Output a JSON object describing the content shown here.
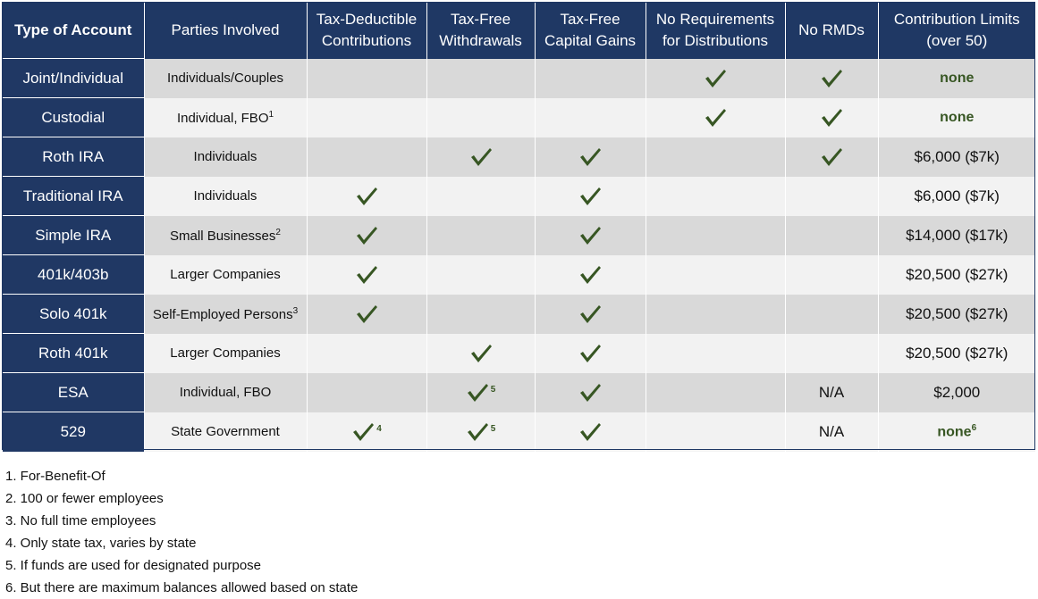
{
  "headers": [
    "Type of Account",
    "Parties Involved",
    "Tax-Deductible\nContributions",
    "Tax-Free\nWithdrawals",
    "Tax-Free\nCapital Gains",
    "No Requirements\nfor Distributions",
    "No RMDs",
    "Contribution Limits\n(over 50)"
  ],
  "check_icon": "check-icon",
  "accent_color": "#1f3864",
  "check_color": "#375623",
  "rows": [
    {
      "account": "Joint/Individual",
      "parties": "Individuals/Couples",
      "parties_sup": "",
      "deductible": "",
      "deductible_fn": "",
      "withdrawals": "",
      "withdrawals_fn": "",
      "capgains": "",
      "noreq": "check",
      "normd": "check",
      "limit": "none",
      "limit_sup": "",
      "limit_green": true
    },
    {
      "account": "Custodial",
      "parties": "Individual, FBO",
      "parties_sup": "1",
      "deductible": "",
      "deductible_fn": "",
      "withdrawals": "",
      "withdrawals_fn": "",
      "capgains": "",
      "noreq": "check",
      "normd": "check",
      "limit": "none",
      "limit_sup": "",
      "limit_green": true
    },
    {
      "account": "Roth IRA",
      "parties": "Individuals",
      "parties_sup": "",
      "deductible": "",
      "deductible_fn": "",
      "withdrawals": "check",
      "withdrawals_fn": "",
      "capgains": "check",
      "noreq": "",
      "normd": "check",
      "limit": "$6,000 ($7k)",
      "limit_sup": "",
      "limit_green": false
    },
    {
      "account": "Traditional IRA",
      "parties": "Individuals",
      "parties_sup": "",
      "deductible": "check",
      "deductible_fn": "",
      "withdrawals": "",
      "withdrawals_fn": "",
      "capgains": "check",
      "noreq": "",
      "normd": "",
      "limit": "$6,000 ($7k)",
      "limit_sup": "",
      "limit_green": false
    },
    {
      "account": "Simple IRA",
      "parties": "Small Businesses",
      "parties_sup": "2",
      "deductible": "check",
      "deductible_fn": "",
      "withdrawals": "",
      "withdrawals_fn": "",
      "capgains": "check",
      "noreq": "",
      "normd": "",
      "limit": "$14,000 ($17k)",
      "limit_sup": "",
      "limit_green": false
    },
    {
      "account": "401k/403b",
      "parties": "Larger Companies",
      "parties_sup": "",
      "deductible": "check",
      "deductible_fn": "",
      "withdrawals": "",
      "withdrawals_fn": "",
      "capgains": "check",
      "noreq": "",
      "normd": "",
      "limit": "$20,500 ($27k)",
      "limit_sup": "",
      "limit_green": false
    },
    {
      "account": "Solo 401k",
      "parties": "Self-Employed Persons",
      "parties_sup": "3",
      "deductible": "check",
      "deductible_fn": "",
      "withdrawals": "",
      "withdrawals_fn": "",
      "capgains": "check",
      "noreq": "",
      "normd": "",
      "limit": "$20,500 ($27k)",
      "limit_sup": "",
      "limit_green": false
    },
    {
      "account": "Roth 401k",
      "parties": "Larger Companies",
      "parties_sup": "",
      "deductible": "",
      "deductible_fn": "",
      "withdrawals": "check",
      "withdrawals_fn": "",
      "capgains": "check",
      "noreq": "",
      "normd": "",
      "limit": "$20,500 ($27k)",
      "limit_sup": "",
      "limit_green": false
    },
    {
      "account": "ESA",
      "parties": "Individual, FBO",
      "parties_sup": "",
      "deductible": "",
      "deductible_fn": "",
      "withdrawals": "check",
      "withdrawals_fn": "5",
      "capgains": "check",
      "noreq": "",
      "normd": "N/A",
      "limit": "$2,000",
      "limit_sup": "",
      "limit_green": false
    },
    {
      "account": "529",
      "parties": "State Government",
      "parties_sup": "",
      "deductible": "check",
      "deductible_fn": "4",
      "withdrawals": "check",
      "withdrawals_fn": "5",
      "capgains": "check",
      "noreq": "",
      "normd": "N/A",
      "limit": "none",
      "limit_sup": "6",
      "limit_green": true
    }
  ],
  "footnotes": [
    "1. For-Benefit-Of",
    "2. 100 or fewer employees",
    "3. No full time employees",
    "4. Only state tax, varies by state",
    "5. If funds are used for designated purpose",
    "6. But there are maximum balances allowed based on state"
  ]
}
